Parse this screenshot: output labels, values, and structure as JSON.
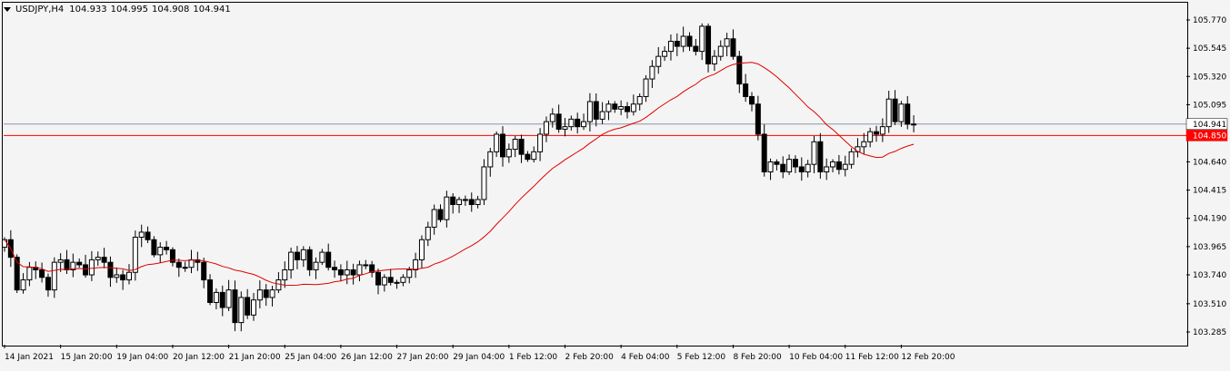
{
  "header": {
    "menu_icon": "triangle-down-icon",
    "symbol": "USDJPY,H4",
    "open": "104.933",
    "high": "104.995",
    "low": "104.908",
    "close": "104.941"
  },
  "price_tags": {
    "bid": {
      "label": "104.941",
      "value": 104.941,
      "bg": "#ffffff",
      "fg": "#000000",
      "line_color": "#8a96a8"
    },
    "level": {
      "label": "104.850",
      "value": 104.85,
      "bg": "#ff0000",
      "fg": "#ffffff",
      "line_color": "#ff0000"
    }
  },
  "colors": {
    "bull_fill": "#ffffff",
    "bear_fill": "#000000",
    "wick": "#000000",
    "ma": "#e00000",
    "background": "#f4f4f4"
  },
  "chart_data": {
    "type": "candlestick",
    "symbol": "USDJPY",
    "timeframe": "H4",
    "y_ticks": [
      "105.770",
      "105.545",
      "105.320",
      "105.095",
      "104.640",
      "104.415",
      "104.190",
      "103.965",
      "103.740",
      "103.510",
      "103.285"
    ],
    "ylim": [
      103.285,
      105.875
    ],
    "x_labels": [
      "14 Jan 2021",
      "15 Jan 20:00",
      "19 Jan 04:00",
      "20 Jan 12:00",
      "21 Jan 20:00",
      "25 Jan 04:00",
      "26 Jan 12:00",
      "27 Jan 20:00",
      "29 Jan 04:00",
      "1 Feb 12:00",
      "2 Feb 20:00",
      "4 Feb 04:00",
      "5 Feb 12:00",
      "8 Feb 20:00",
      "10 Feb 04:00",
      "11 Feb 12:00",
      "12 Feb 20:00"
    ],
    "closes": [
      104.02,
      103.88,
      103.62,
      103.7,
      103.8,
      103.78,
      103.72,
      103.62,
      103.84,
      103.86,
      103.78,
      103.84,
      103.82,
      103.74,
      103.86,
      103.88,
      103.84,
      103.72,
      103.74,
      103.7,
      103.76,
      104.04,
      104.08,
      104.02,
      103.9,
      103.96,
      103.94,
      103.84,
      103.8,
      103.8,
      103.86,
      103.84,
      103.7,
      103.52,
      103.6,
      103.48,
      103.62,
      103.36,
      103.56,
      103.42,
      103.54,
      103.62,
      103.56,
      103.62,
      103.7,
      103.78,
      103.92,
      103.86,
      103.94,
      103.78,
      103.84,
      103.92,
      103.8,
      103.78,
      103.74,
      103.78,
      103.74,
      103.82,
      103.82,
      103.76,
      103.66,
      103.72,
      103.68,
      103.68,
      103.72,
      103.78,
      103.86,
      104.02,
      104.12,
      104.26,
      104.18,
      104.36,
      104.3,
      104.34,
      104.34,
      104.3,
      104.34,
      104.6,
      104.72,
      104.86,
      104.68,
      104.74,
      104.82,
      104.7,
      104.66,
      104.72,
      104.86,
      104.96,
      105.02,
      104.9,
      104.92,
      104.98,
      104.92,
      104.96,
      105.12,
      104.98,
      105.04,
      105.1,
      105.06,
      105.08,
      105.04,
      105.1,
      105.16,
      105.3,
      105.4,
      105.48,
      105.52,
      105.6,
      105.56,
      105.64,
      105.56,
      105.52,
      105.72,
      105.42,
      105.48,
      105.56,
      105.62,
      105.48,
      105.26,
      105.16,
      105.1,
      104.86,
      104.56,
      104.64,
      104.62,
      104.56,
      104.66,
      104.6,
      104.56,
      104.62,
      104.8,
      104.56,
      104.6,
      104.64,
      104.58,
      104.62,
      104.72,
      104.76,
      104.8,
      104.88,
      104.86,
      104.92,
      105.14,
      104.96,
      105.1,
      104.94,
      104.941
    ],
    "ma_period": "",
    "grid": false,
    "price_scale_side": "right"
  }
}
